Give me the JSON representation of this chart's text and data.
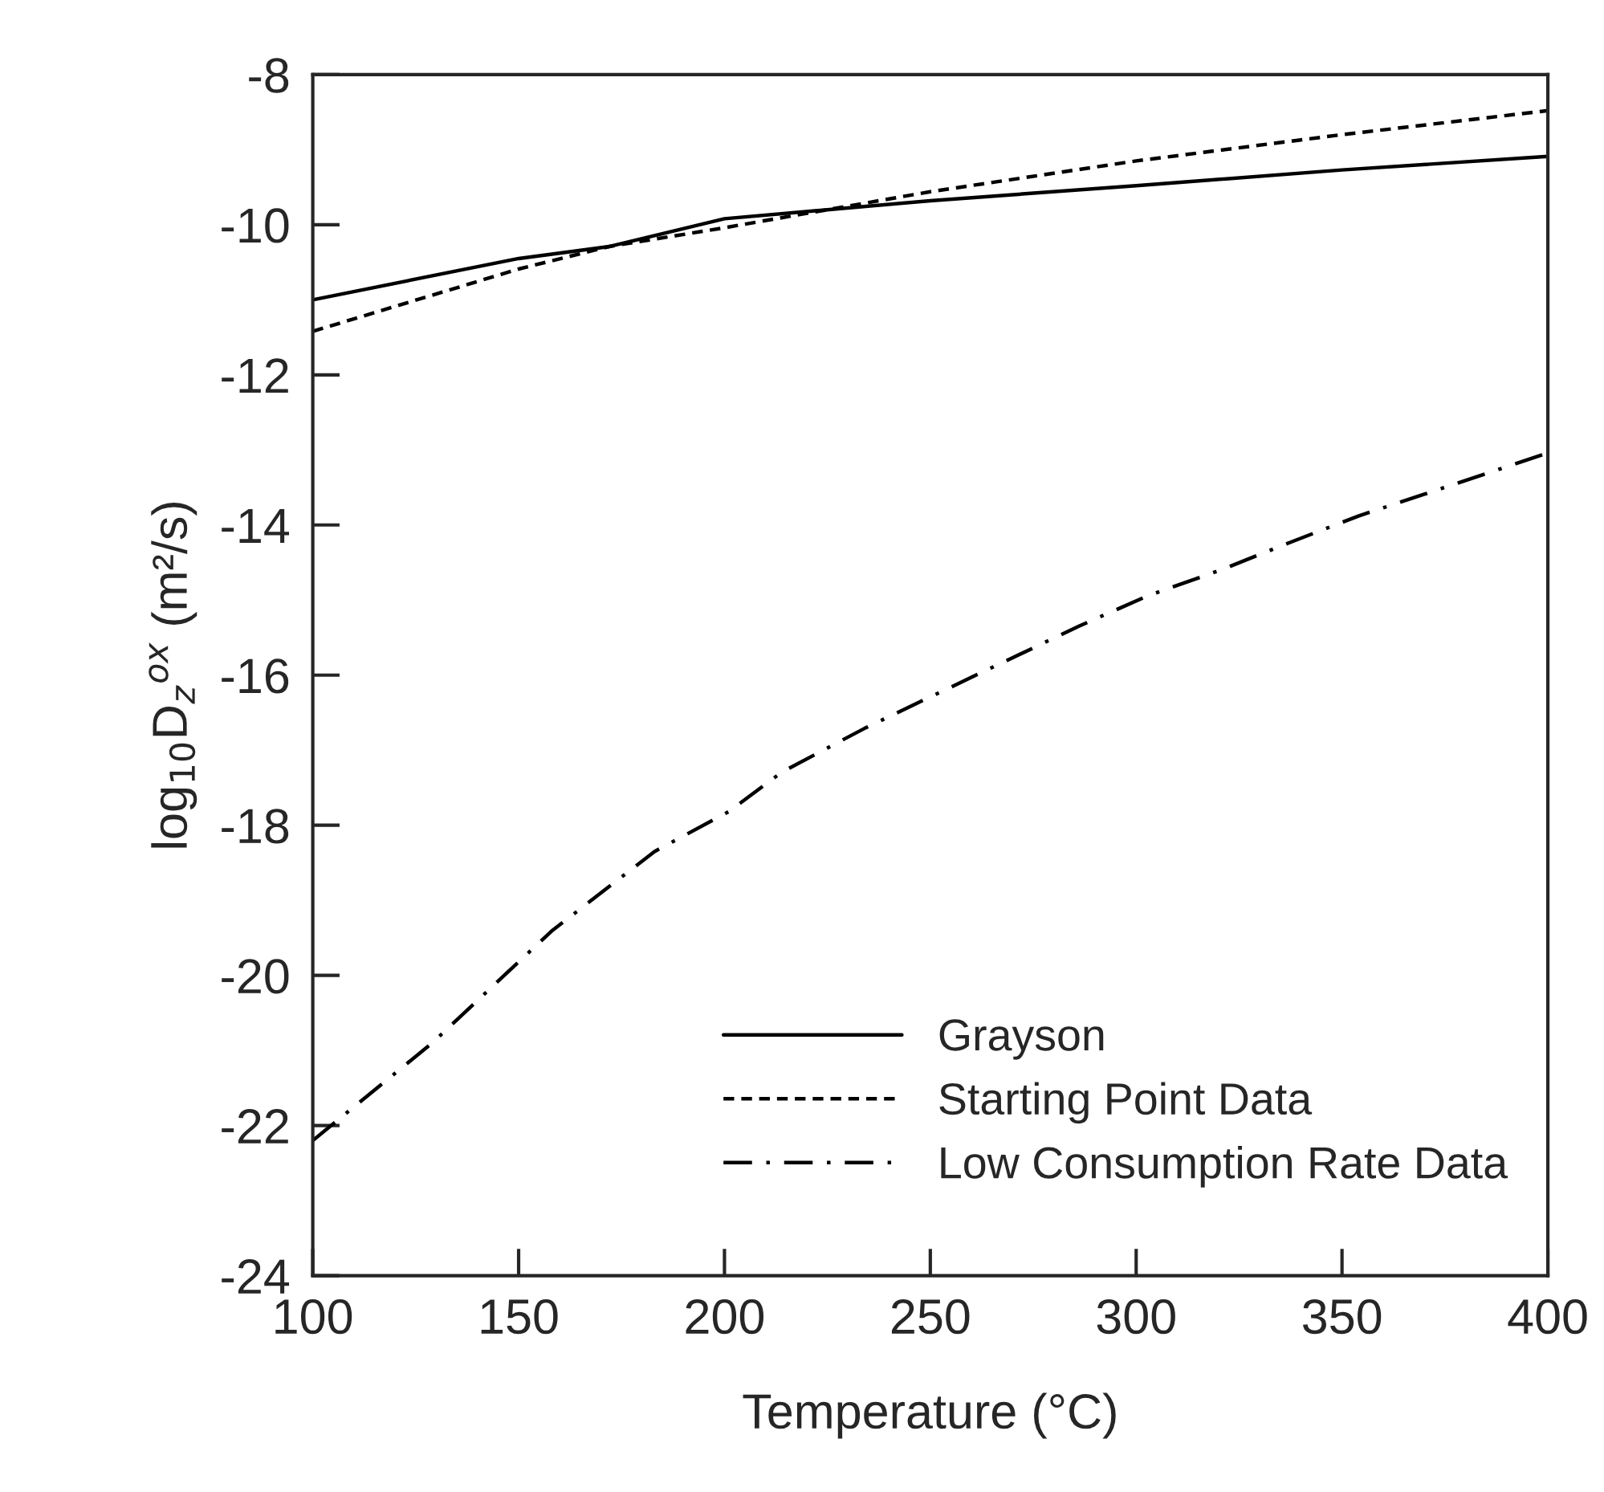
{
  "chart_data": {
    "type": "line",
    "xlabel": "Temperature (°C)",
    "ylabel": "log$_{10}$D$_{z}$$^{ox}$ (m²/s)",
    "xlim": [
      100,
      400
    ],
    "xticks": [
      100,
      150,
      200,
      250,
      300,
      350,
      400
    ],
    "ylim": [
      -24,
      -8
    ],
    "yticks": [
      -24,
      -22,
      -20,
      -18,
      -16,
      -14,
      -12,
      -10,
      -8
    ],
    "grid": false,
    "legend": "bottom right",
    "marker": "none",
    "series": [
      {
        "name": "Grayson",
        "color": "#000000",
        "line_style": "solid",
        "x": [
          100,
          150,
          172,
          200,
          250,
          300,
          350,
          400
        ],
        "values": [
          -11.0,
          -10.45,
          -10.29,
          -9.92,
          -9.68,
          -9.48,
          -9.27,
          -9.09
        ]
      },
      {
        "name": "Starting Point Data",
        "color": "#000000",
        "line_style": "dashed",
        "x": [
          100,
          150,
          172,
          200,
          250,
          300,
          350,
          400
        ],
        "values": [
          -11.42,
          -10.59,
          -10.29,
          -10.04,
          -9.56,
          -9.15,
          -8.8,
          -8.48
        ]
      },
      {
        "name": "Low Consumption Rate Data",
        "color": "#000000",
        "line_style": "dashdot",
        "x": [
          100,
          129,
          158,
          183,
          201,
          214,
          234,
          250,
          268,
          286,
          303,
          321,
          337,
          354,
          370,
          400
        ],
        "values": [
          -22.2,
          -20.9,
          -19.41,
          -18.35,
          -17.82,
          -17.29,
          -16.71,
          -16.29,
          -15.82,
          -15.35,
          -14.94,
          -14.59,
          -14.24,
          -13.88,
          -13.59,
          -13.04
        ]
      }
    ]
  }
}
